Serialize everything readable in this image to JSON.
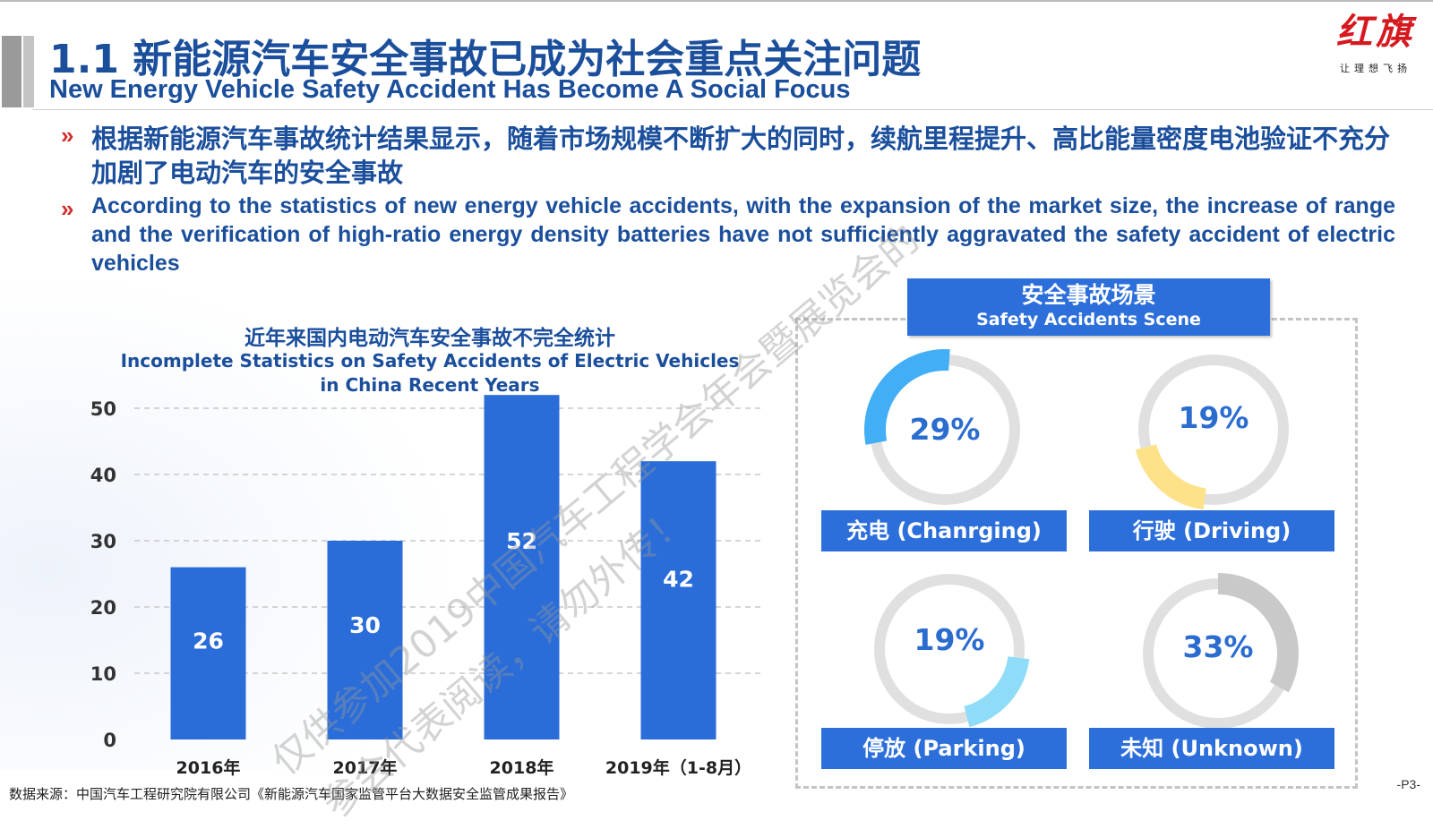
{
  "header": {
    "title_cn": "1.1 新能源汽车安全事故已成为社会重点关注问题",
    "title_en": "New Energy Vehicle Safety Accident Has Become A Social Focus",
    "logo_text": "红旗",
    "logo_slogan": "让理想飞扬"
  },
  "bullets": {
    "marker": "»",
    "cn": "根据新能源汽车事故统计结果显示，随着市场规模不断扩大的同时，续航里程提升、高比能量密度电池验证不充分加剧了电动汽车的安全事故",
    "en": "According to the statistics of new energy vehicle accidents, with the expansion of the market size, the increase of range and the verification of high-ratio energy density batteries have not sufficiently aggravated the safety accident of electric vehicles"
  },
  "chart_data": {
    "type": "bar",
    "title": "近年来国内电动汽车安全事故不完全统计",
    "subtitle": "Incomplete Statistics on Safety Accidents of Electric Vehicles in China Recent Years",
    "categories": [
      "2016年",
      "2017年",
      "2018年",
      "2019年（1-8月）"
    ],
    "values": [
      26,
      30,
      52,
      42
    ],
    "ylim": [
      0,
      50
    ],
    "yticks": [
      0,
      10,
      20,
      30,
      40,
      50
    ],
    "grid": true,
    "xlabel": "",
    "ylabel": "",
    "bar_color": "#2a6dd9"
  },
  "scene": {
    "title_cn": "安全事故场景",
    "title_en": "Safety Accidents Scene",
    "items": [
      {
        "label": "充电 (Chanrging)",
        "pct": "29%",
        "value": 0.29,
        "color": "#42aef5"
      },
      {
        "label": "行驶 (Driving)",
        "pct": "19%",
        "value": 0.19,
        "color": "#fde28a"
      },
      {
        "label": "停放 (Parking)",
        "pct": "19%",
        "value": 0.19,
        "color": "#8fdcf8"
      },
      {
        "label": "未知 (Unknown)",
        "pct": "33%",
        "value": 0.33,
        "color": "#c9c9c9"
      }
    ]
  },
  "source": "数据来源：中国汽车工程研究院有限公司《新能源汽车国家监管平台大数据安全监管成果报告》",
  "page_number": "-P3-",
  "watermark": {
    "line1": "仅供参加2019中国汽车工程学会年会暨展览会的",
    "line2": "参会代表阅读，请勿外传！"
  },
  "colors": {
    "title_blue": "#1b4f9c",
    "accent_blue": "#2d6fda",
    "bullet_red": "#d32f2f",
    "ring_gray": "#e0e0e0"
  }
}
